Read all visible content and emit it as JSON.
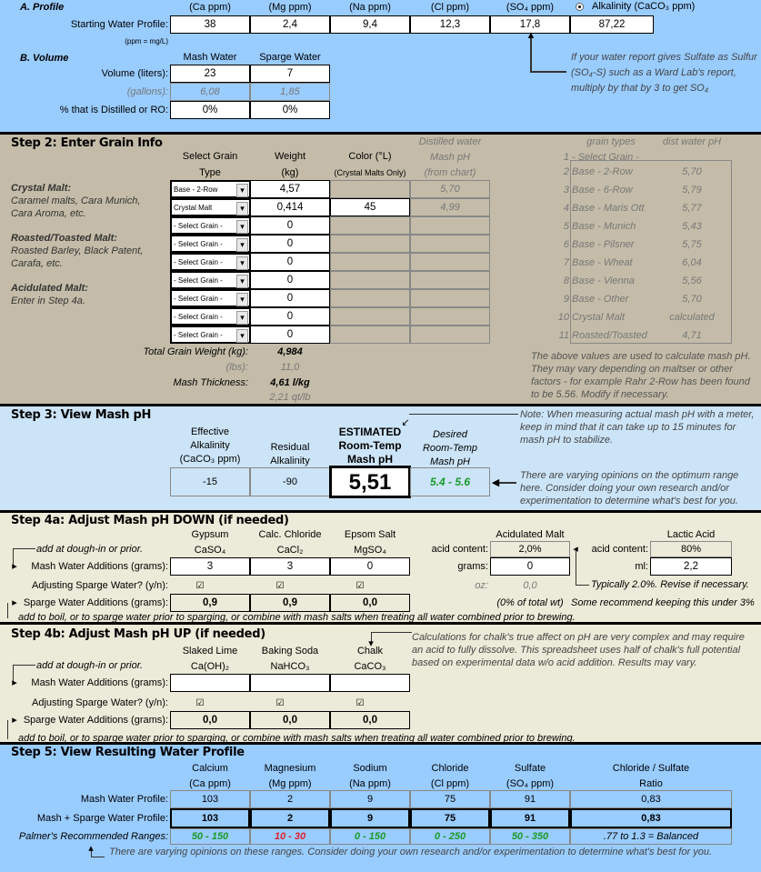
{
  "profile": {
    "title": "A. Profile",
    "headers": [
      "(Ca ppm)",
      "(Mg ppm)",
      "(Na ppm)",
      "(Cl ppm)",
      "(SO₄ ppm)",
      "Alkalinity (CaCO₃ ppm)"
    ],
    "row_label": "Starting Water Profile:",
    "values": [
      "38",
      "2,4",
      "9,4",
      "12,3",
      "17,8",
      "87,22"
    ],
    "unit_note": "(ppm = mg/L)",
    "sulfate_note": [
      "If your water report gives Sulfate as Sulfur",
      "(SO₄-S) such as a Ward Lab's report,",
      "multiply by that by 3 to get SO₄"
    ]
  },
  "volume": {
    "title": "B. Volume",
    "headers": [
      "Mash Water",
      "Sparge Water"
    ],
    "rows": [
      {
        "label": "Volume (liters):",
        "values": [
          "23",
          "7"
        ]
      },
      {
        "label": "(gallons):",
        "values": [
          "6,08",
          "1,85"
        ]
      },
      {
        "label": "% that is Distilled or RO:",
        "values": [
          "0%",
          "0%"
        ]
      }
    ]
  },
  "grain": {
    "title": "Step 2: Enter Grain Info",
    "headers": {
      "type": [
        "Select Grain",
        "Type"
      ],
      "weight": [
        "Weight",
        "(kg)"
      ],
      "color": [
        "Color (°L)",
        "(Crystal Malts Only)"
      ],
      "ph": [
        "Distilled water",
        "Mash pH",
        "(from chart)"
      ]
    },
    "rows": [
      {
        "type": "Base - 2-Row",
        "weight": "4,57",
        "color": "",
        "ph": "5,70"
      },
      {
        "type": "Crystal Malt",
        "weight": "0,414",
        "color": "45",
        "ph": "4,99"
      },
      {
        "type": "- Select Grain -",
        "weight": "0",
        "color": "",
        "ph": ""
      },
      {
        "type": "- Select Grain -",
        "weight": "0",
        "color": "",
        "ph": ""
      },
      {
        "type": "- Select Grain -",
        "weight": "0",
        "color": "",
        "ph": ""
      },
      {
        "type": "- Select Grain -",
        "weight": "0",
        "color": "",
        "ph": ""
      },
      {
        "type": "- Select Grain -",
        "weight": "0",
        "color": "",
        "ph": ""
      },
      {
        "type": "- Select Grain -",
        "weight": "0",
        "color": "",
        "ph": ""
      },
      {
        "type": "- Select Grain -",
        "weight": "0",
        "color": "",
        "ph": ""
      }
    ],
    "notes": {
      "crystal": [
        "Crystal Malt:",
        "Caramel malts, Cara Munich,",
        "Cara Aroma, etc."
      ],
      "roasted": [
        "Roasted/Toasted Malt:",
        "Roasted Barley, Black Patent,",
        "Carafa, etc."
      ],
      "acid": [
        "Acidulated Malt:",
        "Enter in Step 4a."
      ]
    },
    "totals": {
      "weight_label": "Total Grain Weight (kg):",
      "weight": "4,984",
      "lbs_label": "(lbs):",
      "lbs": "11,0",
      "thickness_label": "Mash Thickness:",
      "thickness": "4,61 l/kg",
      "thickness_qt": "2,21 qt/lb"
    },
    "reference": {
      "headers": [
        "grain types",
        "dist water pH"
      ],
      "rows": [
        {
          "n": "1",
          "name": "- Select Grain -",
          "ph": ""
        },
        {
          "n": "2",
          "name": "Base - 2-Row",
          "ph": "5,70"
        },
        {
          "n": "3",
          "name": "Base - 6-Row",
          "ph": "5,79"
        },
        {
          "n": "4",
          "name": "Base - Maris Ott",
          "ph": "5,77"
        },
        {
          "n": "5",
          "name": "Base - Munich",
          "ph": "5,43"
        },
        {
          "n": "6",
          "name": "Base - Pilsner",
          "ph": "5,75"
        },
        {
          "n": "7",
          "name": "Base - Wheat",
          "ph": "6,04"
        },
        {
          "n": "8",
          "name": "Base - Vienna",
          "ph": "5,56"
        },
        {
          "n": "9",
          "name": "Base - Other",
          "ph": "5,70"
        },
        {
          "n": "10",
          "name": "Crystal Malt",
          "ph": "calculated"
        },
        {
          "n": "11",
          "name": "Roasted/Toasted",
          "ph": "4,71"
        }
      ],
      "note": [
        "The above values are used to calculate mash pH.",
        "They may vary depending on maltser or other",
        "factors - for example Rahr 2-Row has been found",
        "to be 5.56. Modify if necessary."
      ]
    }
  },
  "mash_ph": {
    "title": "Step 3: View Mash pH",
    "headers": {
      "effective": [
        "Effective",
        "Alkalinity",
        "(CaCO₃ ppm)"
      ],
      "residual": [
        "Residual",
        "Alkalinity"
      ],
      "estimated": [
        "ESTIMATED",
        "Room-Temp",
        "Mash pH"
      ],
      "desired": [
        "Desired",
        "Room-Temp",
        "Mash pH"
      ]
    },
    "effective": "-15",
    "residual": "-90",
    "estimated": "5,51",
    "desired": "5.4 - 5.6",
    "meter_note": [
      "Note: When measuring actual mash pH with a meter,",
      "keep in mind that it can take up to 15 minutes for",
      "mash pH to stabilize."
    ],
    "range_note": [
      "There are varying opinions on the optimum range",
      "here. Consider doing your own research and/or",
      "experimentation to determine what's best for you."
    ]
  },
  "step4a": {
    "title": "Step 4a: Adjust Mash pH DOWN (if needed)",
    "salts": [
      {
        "name": "Gypsum",
        "formula": "CaSO₄",
        "mash": "3",
        "sparge_check": "☑",
        "sparge": "0,9"
      },
      {
        "name": "Calc. Chloride",
        "formula": "CaCl₂",
        "mash": "3",
        "sparge_check": "☑",
        "sparge": "0,9"
      },
      {
        "name": "Epsom Salt",
        "formula": "MgSO₄",
        "mash": "0",
        "sparge_check": "☑",
        "sparge": "0,0"
      }
    ],
    "labels": {
      "dough_in": "add at dough-in or prior.",
      "mash": "Mash Water Additions (grams):",
      "adjust": "Adjusting Sparge Water? (y/n):",
      "sparge": "Sparge Water Additions (grams):",
      "boil_note": "add to boil, or to sparge water prior to sparging, or combine with mash salts when treating all water combined prior to brewing."
    },
    "acid_malt": {
      "title": "Acidulated Malt",
      "content_label": "acid content:",
      "content": "2,0%",
      "grams_label": "grams:",
      "grams": "0",
      "oz_label": "oz:",
      "oz": "0,0",
      "pct": "(0% of total wt)"
    },
    "lactic": {
      "title": "Lactic Acid",
      "content_label": "acid content:",
      "content": "80%",
      "ml_label": "ml:",
      "ml": "2,2"
    },
    "typical_note": "Typically 2.0%. Revise if necessary.",
    "keep_note": "Some recommend keeping this under 3%"
  },
  "step4b": {
    "title": "Step 4b: Adjust Mash pH UP (if needed)",
    "salts": [
      {
        "name": "Slaked Lime",
        "formula": "Ca(OH)₂",
        "mash": "",
        "sparge_check": "☑",
        "sparge": "0,0"
      },
      {
        "name": "Baking Soda",
        "formula": "NaHCO₃",
        "mash": "",
        "sparge_check": "☑",
        "sparge": "0,0"
      },
      {
        "name": "Chalk",
        "formula": "CaCO₃",
        "mash": "",
        "sparge_check": "☑",
        "sparge": "0,0"
      }
    ],
    "labels": {
      "dough_in": "add at dough-in or prior.",
      "mash": "Mash Water Additions (grams):",
      "adjust": "Adjusting Sparge Water? (y/n):",
      "sparge": "Sparge Water Additions (grams):",
      "boil_note": "add to boil, or to sparge water prior to sparging, or combine with mash salts when treating all water combined prior to brewing."
    },
    "chalk_note": [
      "Calculations for chalk's true affect on pH are very complex and may require",
      "an acid to fully dissolve.  This spreadsheet uses half of chalk's full potential",
      "based on experimental data w/o acid addition.  Results may vary."
    ]
  },
  "result": {
    "title": "Step 5: View Resulting Water Profile",
    "headers": [
      [
        "Calcium",
        "(Ca ppm)"
      ],
      [
        "Magnesium",
        "(Mg ppm)"
      ],
      [
        "Sodium",
        "(Na ppm)"
      ],
      [
        "Chloride",
        "(Cl ppm)"
      ],
      [
        "Sulfate",
        "(SO₄ ppm)"
      ],
      [
        "Chloride / Sulfate",
        "Ratio"
      ]
    ],
    "rows": [
      {
        "label": "Mash Water Profile:",
        "values": [
          "103",
          "2",
          "9",
          "75",
          "91",
          "0,83"
        ]
      },
      {
        "label": "Mash + Sparge Water Profile:",
        "values": [
          "103",
          "2",
          "9",
          "75",
          "91",
          "0,83"
        ]
      }
    ],
    "ranges_label": "Palmer's Recommended Ranges:",
    "ranges": [
      "50 - 150",
      "10 - 30",
      "0 - 150",
      "0 - 250",
      "50 - 350",
      ".77 to 1.3 = Balanced"
    ],
    "range_status": [
      "green",
      "red",
      "green",
      "green",
      "green",
      "none"
    ],
    "note": "There are varying opinions on these ranges. Consider doing your own research and/or experimentation to determine what's best for you."
  },
  "colors": {
    "profile_bg": "#99ccff",
    "grain_bg": "#c4bca8",
    "mash_bg": "#cce4f7",
    "adjust_bg": "#ecead8",
    "in_range": "#1a9a2a",
    "out_of_range": "#e0202c"
  }
}
